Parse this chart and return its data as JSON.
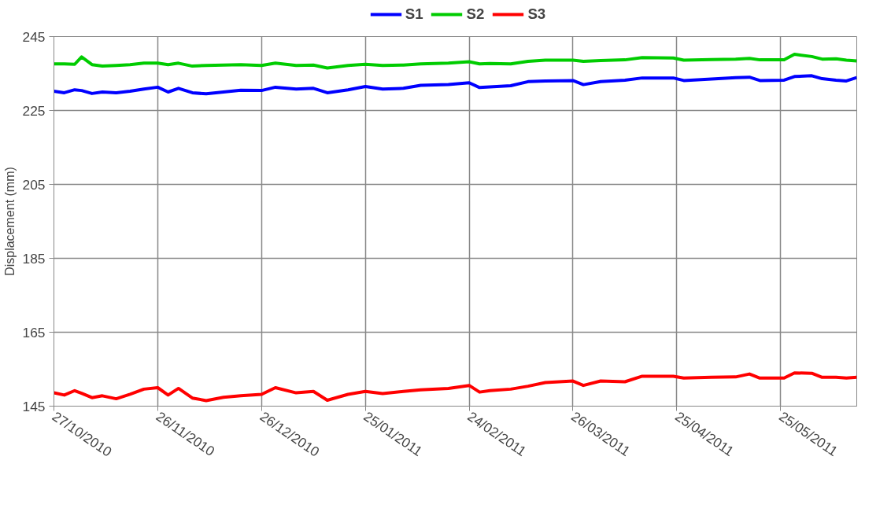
{
  "chart_data": {
    "type": "line",
    "ylabel": "Displacement (mm)",
    "x": [
      "2010-10-27",
      "2010-10-30",
      "2010-11-02",
      "2010-11-04",
      "2010-11-07",
      "2010-11-10",
      "2010-11-14",
      "2010-11-18",
      "2010-11-22",
      "2010-11-26",
      "2010-11-29",
      "2010-12-02",
      "2010-12-06",
      "2010-12-10",
      "2010-12-15",
      "2010-12-20",
      "2010-12-26",
      "2010-12-30",
      "2011-01-05",
      "2011-01-10",
      "2011-01-14",
      "2011-01-20",
      "2011-01-25",
      "2011-01-30",
      "2011-02-05",
      "2011-02-10",
      "2011-02-18",
      "2011-02-24",
      "2011-02-27",
      "2011-03-02",
      "2011-03-08",
      "2011-03-13",
      "2011-03-18",
      "2011-03-26",
      "2011-03-29",
      "2011-04-03",
      "2011-04-10",
      "2011-04-15",
      "2011-04-24",
      "2011-04-27",
      "2011-05-05",
      "2011-05-12",
      "2011-05-16",
      "2011-05-19",
      "2011-05-26",
      "2011-05-29",
      "2011-06-03",
      "2011-06-06",
      "2011-06-10",
      "2011-06-13",
      "2011-06-16"
    ],
    "series": [
      {
        "name": "S1",
        "color": "#0000ff",
        "values": [
          230.2,
          229.8,
          230.6,
          230.4,
          229.6,
          230.0,
          229.8,
          230.2,
          230.8,
          231.3,
          230.0,
          231.0,
          229.8,
          229.5,
          230.0,
          230.5,
          230.4,
          231.3,
          230.8,
          231.0,
          229.8,
          230.6,
          231.5,
          230.8,
          231.0,
          231.8,
          232.0,
          232.5,
          231.2,
          231.4,
          231.7,
          232.8,
          233.0,
          233.1,
          232.0,
          232.8,
          233.2,
          233.8,
          233.8,
          233.1,
          233.5,
          233.9,
          234.0,
          233.1,
          233.2,
          234.2,
          234.4,
          233.6,
          233.2,
          233.0,
          233.9
        ]
      },
      {
        "name": "S2",
        "color": "#00cc00",
        "values": [
          237.6,
          237.6,
          237.5,
          239.5,
          237.4,
          237.0,
          237.2,
          237.4,
          237.8,
          237.8,
          237.4,
          237.8,
          237.0,
          237.2,
          237.3,
          237.4,
          237.2,
          237.8,
          237.2,
          237.3,
          236.5,
          237.2,
          237.5,
          237.2,
          237.3,
          237.6,
          237.8,
          238.2,
          237.6,
          237.7,
          237.6,
          238.3,
          238.6,
          238.6,
          238.3,
          238.5,
          238.7,
          239.3,
          239.2,
          238.6,
          238.8,
          238.9,
          239.1,
          238.7,
          238.7,
          240.2,
          239.6,
          238.9,
          239.0,
          238.6,
          238.4
        ]
      },
      {
        "name": "S3",
        "color": "#ff0000",
        "values": [
          148.6,
          148.0,
          149.2,
          148.5,
          147.3,
          147.8,
          147.0,
          148.2,
          149.6,
          150.0,
          148.0,
          149.8,
          147.2,
          146.5,
          147.4,
          147.8,
          148.2,
          150.0,
          148.6,
          149.0,
          146.6,
          148.2,
          149.0,
          148.4,
          149.0,
          149.4,
          149.8,
          150.6,
          148.8,
          149.2,
          149.6,
          150.4,
          151.4,
          151.8,
          150.6,
          151.8,
          151.6,
          153.1,
          153.1,
          152.6,
          152.8,
          152.9,
          153.7,
          152.6,
          152.6,
          154.0,
          153.9,
          152.8,
          152.8,
          152.6,
          152.8
        ]
      }
    ],
    "xlim": [
      "2010-10-27",
      "2011-06-16"
    ],
    "xticks": [
      {
        "value": "2010-10-27",
        "label": "27/10/2010"
      },
      {
        "value": "2010-11-26",
        "label": "26/11/2010"
      },
      {
        "value": "2010-12-26",
        "label": "26/12/2010"
      },
      {
        "value": "2011-01-25",
        "label": "25/01/2011"
      },
      {
        "value": "2011-02-24",
        "label": "24/02/2011"
      },
      {
        "value": "2011-03-26",
        "label": "26/03/2011"
      },
      {
        "value": "2011-04-25",
        "label": "25/04/2011"
      },
      {
        "value": "2011-05-25",
        "label": "25/05/2011"
      }
    ],
    "ylim": [
      145,
      245
    ],
    "yticks": [
      145,
      165,
      185,
      205,
      225,
      245
    ],
    "grid": true,
    "legend": "top",
    "marker": "none",
    "line_style": "solid"
  }
}
